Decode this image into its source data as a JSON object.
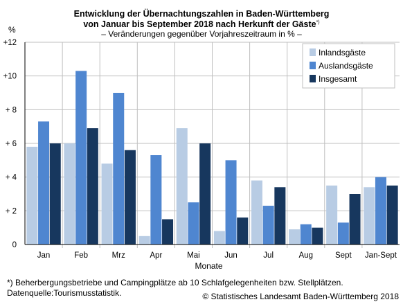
{
  "header": {
    "title_line1": "Entwicklung der Übernachtungszahlen in Baden-Württemberg",
    "title_line2": "von Januar bis September 2018 nach Herkunft der Gäste",
    "title_mark": "*)",
    "subtitle": "– Veränderungen gegenüber  Vorjahreszeitraum in % –",
    "unit": "%"
  },
  "footer": {
    "note": "*) Beherbergungsbetriebe und Campingplätze ab 10 Schlafgelegenheiten bzw. Stellplätzen.",
    "source": "Datenquelle:Tourismusstatistik.",
    "copyright": "© Statistisches Landesamt Baden-Württemberg 2018"
  },
  "chart_data": {
    "type": "bar",
    "title": "Entwicklung der Übernachtungszahlen in Baden-Württemberg von Januar bis September 2018 nach Herkunft der Gäste",
    "xlabel": "Monate",
    "ylabel": "%",
    "ylim": [
      0,
      12
    ],
    "yticks": [
      0,
      2,
      4,
      6,
      8,
      10,
      12
    ],
    "ytick_labels": [
      "0",
      "+ 2",
      "+ 4",
      "+ 6",
      "+ 8",
      "+10",
      "+12"
    ],
    "grid": true,
    "legend_position": "top-right",
    "categories": [
      "Jan",
      "Feb",
      "Mrz",
      "Apr",
      "Mai",
      "Jun",
      "Jul",
      "Aug",
      "Sept",
      "Jan-Sept"
    ],
    "series": [
      {
        "name": "Inlandsgäste",
        "color": "#b8cce4",
        "values": [
          5.8,
          6.0,
          4.8,
          0.5,
          6.9,
          0.8,
          3.8,
          0.9,
          3.5,
          3.4
        ]
      },
      {
        "name": "Auslandsgäste",
        "color": "#4f86d0",
        "values": [
          7.3,
          10.3,
          9.0,
          5.3,
          2.5,
          5.0,
          2.3,
          1.2,
          1.3,
          4.0
        ]
      },
      {
        "name": "Insgesamt",
        "color": "#17375e",
        "values": [
          6.0,
          6.9,
          5.6,
          1.5,
          6.0,
          1.6,
          3.4,
          1.0,
          3.0,
          3.5
        ]
      }
    ]
  }
}
